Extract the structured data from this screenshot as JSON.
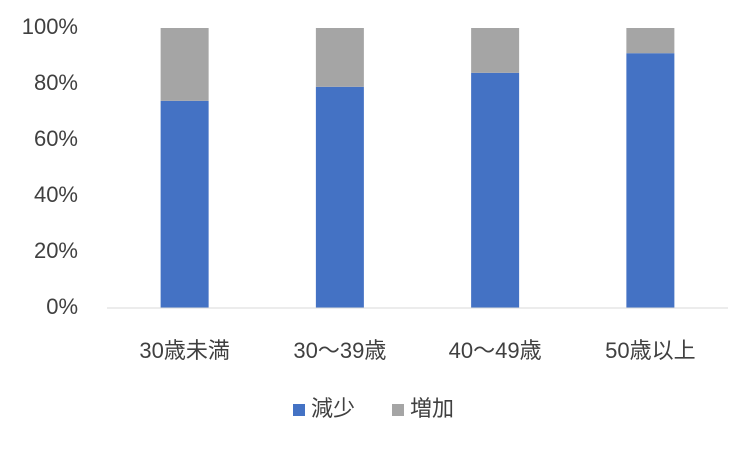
{
  "chart_data": {
    "type": "stacked_bar",
    "categories": [
      "30歳未満",
      "30～39歳",
      "40～49歳",
      "50歳以上"
    ],
    "series": [
      {
        "name": "減少",
        "color": "#4472c4",
        "values": [
          74,
          79,
          84,
          91
        ]
      },
      {
        "name": "増加",
        "color": "#a5a5a5",
        "values": [
          26,
          21,
          16,
          9
        ]
      }
    ],
    "ylim": [
      0,
      100
    ],
    "yticks": [
      {
        "value": 0,
        "label": "0%"
      },
      {
        "value": 20,
        "label": "20%"
      },
      {
        "value": 40,
        "label": "40%"
      },
      {
        "value": 60,
        "label": "60%"
      },
      {
        "value": 80,
        "label": "80%"
      },
      {
        "value": 100,
        "label": "100%"
      }
    ],
    "legend": "bottom"
  }
}
